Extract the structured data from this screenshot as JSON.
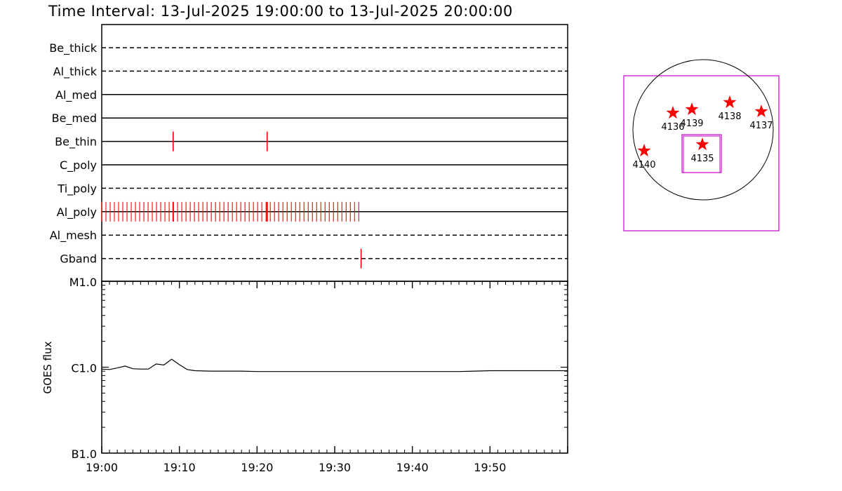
{
  "title": "Time Interval: 13-Jul-2025 19:00:00 to 13-Jul-2025 20:00:00",
  "colors": {
    "event": "#ff0000",
    "frame": "#cc00cc",
    "line": "#000000"
  },
  "chart_data": [
    {
      "type": "timeline",
      "x_range_minutes": [
        0,
        60
      ],
      "channels": [
        {
          "name": "Be_thick",
          "style": "dashed",
          "events_min": []
        },
        {
          "name": "Al_thick",
          "style": "dashed",
          "events_min": []
        },
        {
          "name": "Al_med",
          "style": "solid",
          "events_min": []
        },
        {
          "name": "Be_med",
          "style": "solid",
          "events_min": []
        },
        {
          "name": "Be_thin",
          "style": "solid",
          "events_min": [
            9.2,
            21.3
          ]
        },
        {
          "name": "C_poly",
          "style": "solid",
          "events_min": []
        },
        {
          "name": "Ti_poly",
          "style": "dashed",
          "events_min": []
        },
        {
          "name": "Al_poly",
          "style": "solid",
          "events_range_min": [
            0,
            33.1
          ],
          "event_count": 62
        },
        {
          "name": "Al_mesh",
          "style": "dashed",
          "events_min": []
        },
        {
          "name": "Gband",
          "style": "dashed",
          "events_min": [
            33.4
          ]
        }
      ]
    },
    {
      "type": "line",
      "ylabel": "GOES flux",
      "y_scale": "log",
      "y_ticks": [
        "M1.0",
        "C1.0",
        "B1.0"
      ],
      "x_ticks": [
        "19:00",
        "19:10",
        "19:20",
        "19:30",
        "19:40",
        "19:50"
      ],
      "x_range_minutes": [
        0,
        60
      ],
      "series": [
        {
          "x_min": [
            0,
            1,
            2,
            3,
            4,
            5,
            6,
            7,
            8,
            9,
            10,
            11,
            12,
            14,
            16,
            18,
            20,
            22,
            24,
            26,
            28,
            30,
            32,
            34,
            36,
            38,
            40,
            42,
            44,
            46,
            48,
            50,
            52,
            54,
            56,
            58,
            60
          ],
          "flux": [
            9.5e-07,
            9.4e-07,
            9.8e-07,
            1.03e-06,
            9.6e-07,
            9.5e-07,
            9.5e-07,
            1.09e-06,
            1.06e-06,
            1.24e-06,
            1.07e-06,
            9.4e-07,
            9.1e-07,
            9e-07,
            9e-07,
            9e-07,
            8.9e-07,
            8.9e-07,
            8.9e-07,
            8.9e-07,
            8.9e-07,
            8.9e-07,
            8.9e-07,
            8.9e-07,
            8.9e-07,
            8.9e-07,
            8.9e-07,
            8.9e-07,
            8.9e-07,
            8.9e-07,
            9e-07,
            9.1e-07,
            9.1e-07,
            9.1e-07,
            9.1e-07,
            9.1e-07,
            9.1e-07
          ]
        }
      ]
    },
    {
      "type": "scatter",
      "description_context": "solar disk active region map",
      "active_regions": [
        {
          "label": "4136",
          "x": -0.43,
          "y": 0.24
        },
        {
          "label": "4139",
          "x": -0.16,
          "y": 0.29
        },
        {
          "label": "4138",
          "x": 0.38,
          "y": 0.39
        },
        {
          "label": "4137",
          "x": 0.83,
          "y": 0.26
        },
        {
          "label": "4140",
          "x": -0.84,
          "y": -0.3
        },
        {
          "label": "4135",
          "x": -0.01,
          "y": -0.21
        }
      ]
    }
  ]
}
